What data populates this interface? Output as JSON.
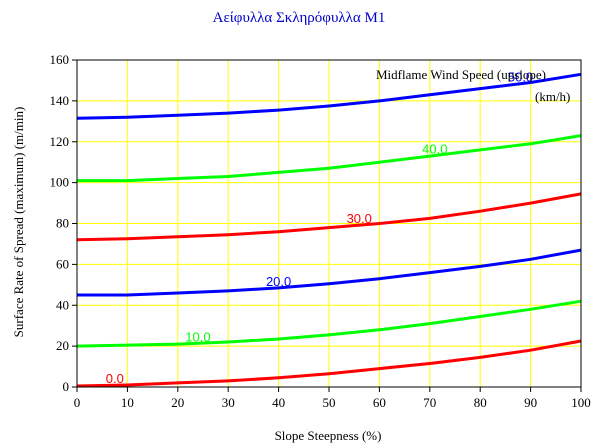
{
  "chart_data": {
    "type": "line",
    "title": "Αείφυλλα Σκληρόφυλλα Μ1",
    "xlabel": "Slope Steepness (%)",
    "ylabel": "Surface Rate of Spread (maximum) (m/min)",
    "legend_title": "Midflame Wind Speed (upslope)",
    "legend_unit": "(km/h)",
    "xlim": [
      0,
      100
    ],
    "ylim": [
      0,
      160
    ],
    "xticks": [
      0,
      10,
      20,
      30,
      40,
      50,
      60,
      70,
      80,
      90,
      100
    ],
    "yticks": [
      0,
      20,
      40,
      60,
      80,
      100,
      120,
      140,
      160
    ],
    "grid": true,
    "x": [
      0,
      10,
      20,
      30,
      40,
      50,
      60,
      70,
      80,
      90,
      100
    ],
    "series": [
      {
        "name": "0.0",
        "color": "#ff0000",
        "label_x": 7.5,
        "values": [
          0.5,
          1,
          2,
          3,
          4.5,
          6.5,
          9,
          11.5,
          14.5,
          18,
          22.5
        ]
      },
      {
        "name": "10.0",
        "color": "#00ff00",
        "label_x": 24,
        "values": [
          20,
          20.5,
          21,
          22,
          23.5,
          25.5,
          28,
          31,
          34.5,
          38,
          42
        ]
      },
      {
        "name": "20.0",
        "color": "#0000ff",
        "label_x": 40,
        "values": [
          45,
          45,
          46,
          47,
          48.5,
          50.5,
          53,
          56,
          59,
          62.5,
          67
        ]
      },
      {
        "name": "30.0",
        "color": "#ff0000",
        "label_x": 56,
        "values": [
          72,
          72.5,
          73.5,
          74.5,
          76,
          78,
          80,
          82.5,
          86,
          90,
          94.5
        ]
      },
      {
        "name": "40.0",
        "color": "#00ff00",
        "label_x": 71,
        "values": [
          101,
          101,
          102,
          103,
          105,
          107,
          110,
          113,
          116,
          119,
          123
        ]
      },
      {
        "name": "50.0",
        "color": "#0000ff",
        "label_x": 88,
        "values": [
          131.5,
          132,
          133,
          134,
          135.5,
          137.5,
          140,
          143,
          146,
          149,
          153
        ]
      }
    ],
    "colors": {
      "grid": "#ffff00",
      "axis": "#000000",
      "title": "#0000cc"
    }
  }
}
